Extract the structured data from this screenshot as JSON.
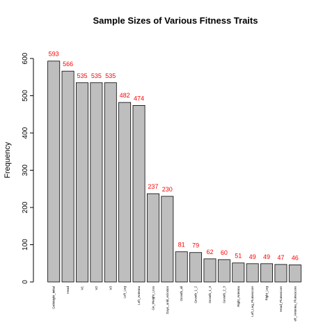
{
  "chart_data": {
    "type": "bar",
    "title": "Sample Sizes of Various Fitness Traits",
    "y_label": "Frequency",
    "categories": [
      "GnWeight_initial",
      "Head",
      "V1",
      "V2",
      "V3",
      "Left_Leg",
      "Left_Antenna",
      "Gn_Weight_Loss",
      "Days_until_eclosion",
      "Growth_all",
      "Growth_1_2",
      "Growth_1_3",
      "Growth_2_3",
      "Right_Antenna",
      "Left_Leg_Plumescore",
      "Right_Leg",
      "Head_Plumescore",
      "eft_Antenna_Plumescore"
    ],
    "values": [
      593,
      566,
      535,
      535,
      535,
      482,
      474,
      237,
      230,
      81,
      79,
      62,
      60,
      51,
      49,
      49,
      47,
      46
    ],
    "color": "#bebebe",
    "value_label_color": "#ff0000",
    "ylim": [
      0,
      600
    ],
    "yticks": [
      0,
      100,
      200,
      300,
      400,
      500,
      600
    ]
  }
}
